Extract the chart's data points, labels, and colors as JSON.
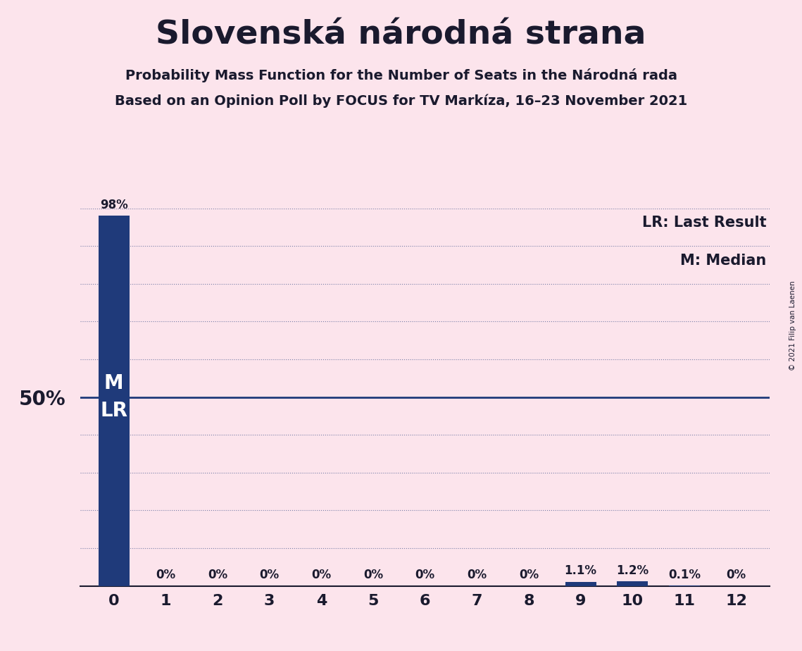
{
  "title": "Slovenská národná strana",
  "subtitle1": "Probability Mass Function for the Number of Seats in the Národná rada",
  "subtitle2": "Based on an Opinion Poll by FOCUS for TV Markíza, 16–23 November 2021",
  "copyright": "© 2021 Filip van Laenen",
  "legend_lr": "LR: Last Result",
  "legend_m": "M: Median",
  "categories": [
    0,
    1,
    2,
    3,
    4,
    5,
    6,
    7,
    8,
    9,
    10,
    11,
    12
  ],
  "values": [
    0.98,
    0.0,
    0.0,
    0.0,
    0.0,
    0.0,
    0.0,
    0.0,
    0.0,
    0.011,
    0.012,
    0.001,
    0.0
  ],
  "bar_labels": [
    "98%",
    "0%",
    "0%",
    "0%",
    "0%",
    "0%",
    "0%",
    "0%",
    "0%",
    "1.1%",
    "1.2%",
    "0.1%",
    "0%"
  ],
  "bar_color": "#1f3a7a",
  "background_color": "#fce4ec",
  "text_color": "#1a1a2e",
  "hline_50_color": "#1f3a7a",
  "dotted_grid_color": "#1f3a7a",
  "dotted_levels": [
    0.1,
    0.2,
    0.3,
    0.4,
    0.6,
    0.7,
    0.8,
    0.9,
    1.0
  ],
  "ylim": [
    0,
    1.0
  ],
  "ytick_pos": [
    0.5
  ],
  "ytick_labels": [
    "50%"
  ]
}
